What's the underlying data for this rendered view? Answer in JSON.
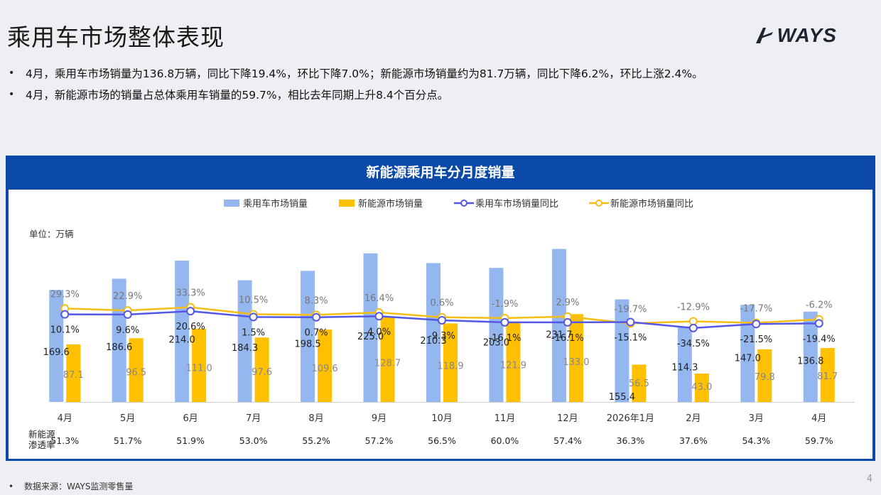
{
  "title": "乘用车市场整体表现",
  "logo_text": "WAYS",
  "bullets": [
    "4月，乘用车市场销量为136.8万辆，同比下降19.4%，环比下降7.0%；新能源市场销量约为81.7万辆，同比下降6.2%，环比上涨2.4%。",
    "4月，新能源市场的销量占总体乘用车销量的59.7%，相比去年同期上升8.4个百分点。"
  ],
  "footer_note": "数据来源：WAYS监测零售量",
  "page_number": "4",
  "colors": {
    "panel_blue": "#0b4aa8",
    "bar_total": "#95b7ef",
    "bar_nev": "#ffc000",
    "line_total": "#5457e6",
    "line_nev": "#f6bd16"
  },
  "chart_data": {
    "type": "bar",
    "title": "新能源乘用车分月度销量",
    "unit_label": "单位：万辆",
    "categories": [
      "4月",
      "5月",
      "6月",
      "7月",
      "8月",
      "9月",
      "10月",
      "11月",
      "12月",
      "2026年1月",
      "2月",
      "3月",
      "4月"
    ],
    "series": [
      {
        "name": "乘用车市场销量",
        "kind": "bar",
        "values": [
          169.6,
          186.6,
          214.0,
          184.3,
          198.5,
          225.0,
          210.3,
          203.0,
          231.7,
          155.4,
          114.3,
          147.0,
          136.8
        ],
        "labels": [
          "169.6",
          "186.6",
          "214.0",
          "184.3",
          "198.5",
          "225.0",
          "210.3",
          "203.0",
          "231.7",
          "155.4",
          "114.3",
          "147.0",
          "136.8"
        ]
      },
      {
        "name": "新能源市场销量",
        "kind": "bar",
        "values": [
          87.1,
          96.5,
          111.0,
          97.6,
          109.6,
          128.7,
          118.9,
          121.9,
          133.0,
          56.5,
          43.0,
          79.8,
          81.7
        ],
        "labels": [
          "87.1",
          "96.5",
          "111.0",
          "97.6",
          "109.6",
          "128.7",
          "118.9",
          "121.9",
          "133.0",
          "56.5",
          "43.0",
          "79.8",
          "81.7"
        ]
      },
      {
        "name": "乘用车市场销量同比",
        "kind": "line",
        "values": [
          10.1,
          9.6,
          20.6,
          1.5,
          0.7,
          4.0,
          -9.3,
          -16.1,
          -16.1,
          -15.1,
          -34.5,
          -21.5,
          -19.4
        ],
        "labels": [
          "10.1%",
          "9.6%",
          "20.6%",
          "1.5%",
          "0.7%",
          "4.0%",
          "-9.3%",
          "-16.1%",
          "-16.1%",
          "-15.1%",
          "-34.5%",
          "-21.5%",
          "-19.4%"
        ]
      },
      {
        "name": "新能源市场销量同比",
        "kind": "line",
        "values": [
          29.3,
          22.9,
          33.3,
          10.5,
          8.3,
          16.4,
          0.6,
          -1.9,
          2.9,
          -19.7,
          -12.9,
          -17.7,
          -6.2
        ],
        "labels": [
          "29.3%",
          "22.9%",
          "33.3%",
          "10.5%",
          "8.3%",
          "16.4%",
          "0.6%",
          "-1.9%",
          "2.9%",
          "-19.7%",
          "-12.9%",
          "-17.7%",
          "-6.2%"
        ]
      }
    ],
    "penetration_label": [
      "新能源",
      "渗透率"
    ],
    "penetration": [
      "51.3%",
      "51.7%",
      "51.9%",
      "53.0%",
      "55.2%",
      "57.2%",
      "56.5%",
      "60.0%",
      "57.4%",
      "36.3%",
      "37.6%",
      "54.3%",
      "59.7%"
    ],
    "legend_position": "top-center",
    "grid": false,
    "ylim_bar": [
      0,
      240
    ]
  }
}
